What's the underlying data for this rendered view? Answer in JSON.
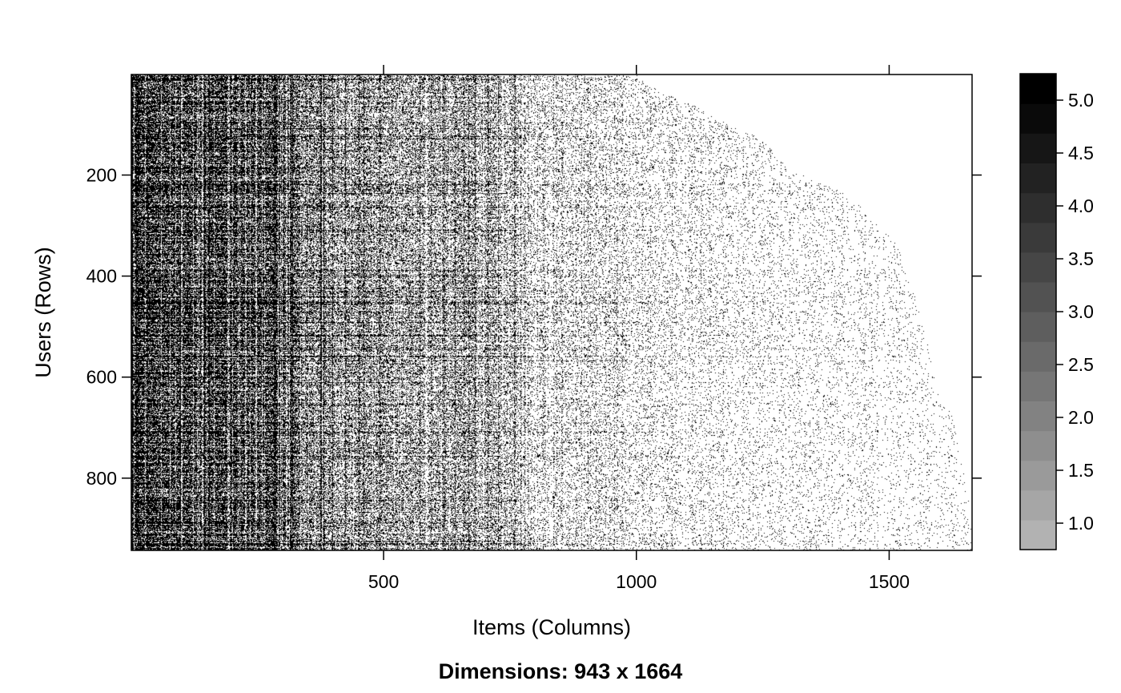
{
  "chart_data": {
    "type": "heatmap",
    "title": "",
    "subtitle": "Dimensions: 943 x 1664",
    "xlabel": "Items (Columns)",
    "ylabel": "Users (Rows)",
    "n_rows": 943,
    "n_cols": 1664,
    "xlim": [
      1,
      1664
    ],
    "ylim": [
      943,
      1
    ],
    "x_ticks": [
      500,
      1000,
      1500
    ],
    "y_ticks": [
      200,
      400,
      600,
      800
    ],
    "x_tick_labels": [
      "500",
      "1000",
      "1500"
    ],
    "y_tick_labels": [
      "200",
      "400",
      "600",
      "800"
    ],
    "colorbar": {
      "range": [
        0.75,
        5.25
      ],
      "tick_values": [
        1.0,
        1.5,
        2.0,
        2.5,
        3.0,
        3.5,
        4.0,
        4.5,
        5.0
      ],
      "tick_labels": [
        "1.0",
        "1.5",
        "2.0",
        "2.5",
        "3.0",
        "3.5",
        "4.0",
        "4.5",
        "5.0"
      ],
      "colors": [
        "#b2b2b2",
        "#a6a6a6",
        "#9a9a9a",
        "#8e8e8e",
        "#828282",
        "#767676",
        "#6a6a6a",
        "#5e5e5e",
        "#525252",
        "#464646",
        "#3a3a3a",
        "#2e2e2e",
        "#222222",
        "#161616",
        "#0a0a0a",
        "#000000"
      ]
    },
    "fill_boundary": {
      "rows": [
        1,
        5,
        20,
        40,
        60,
        90,
        120,
        150,
        190,
        200,
        240,
        290,
        330,
        350,
        405,
        500,
        600,
        650,
        660,
        700,
        760,
        800,
        860,
        943
      ],
      "last_item": [
        1025,
        1000,
        1020,
        1060,
        1110,
        1160,
        1230,
        1270,
        1300,
        1330,
        1420,
        1470,
        1510,
        1520,
        1540,
        1570,
        1590,
        1600,
        1620,
        1630,
        1640,
        1650,
        1660,
        1664
      ]
    },
    "density_profile": {
      "items": [
        1,
        100,
        200,
        300,
        350,
        400,
        500,
        600,
        700,
        750,
        800,
        900,
        1000,
        1100,
        1200,
        1300,
        1400,
        1500,
        1600,
        1664
      ],
      "density": [
        0.78,
        0.72,
        0.75,
        0.68,
        0.5,
        0.42,
        0.4,
        0.34,
        0.36,
        0.28,
        0.16,
        0.14,
        0.11,
        0.09,
        0.07,
        0.06,
        0.05,
        0.045,
        0.04,
        0.035
      ]
    },
    "grid": false,
    "legend": "colorbar-right"
  }
}
